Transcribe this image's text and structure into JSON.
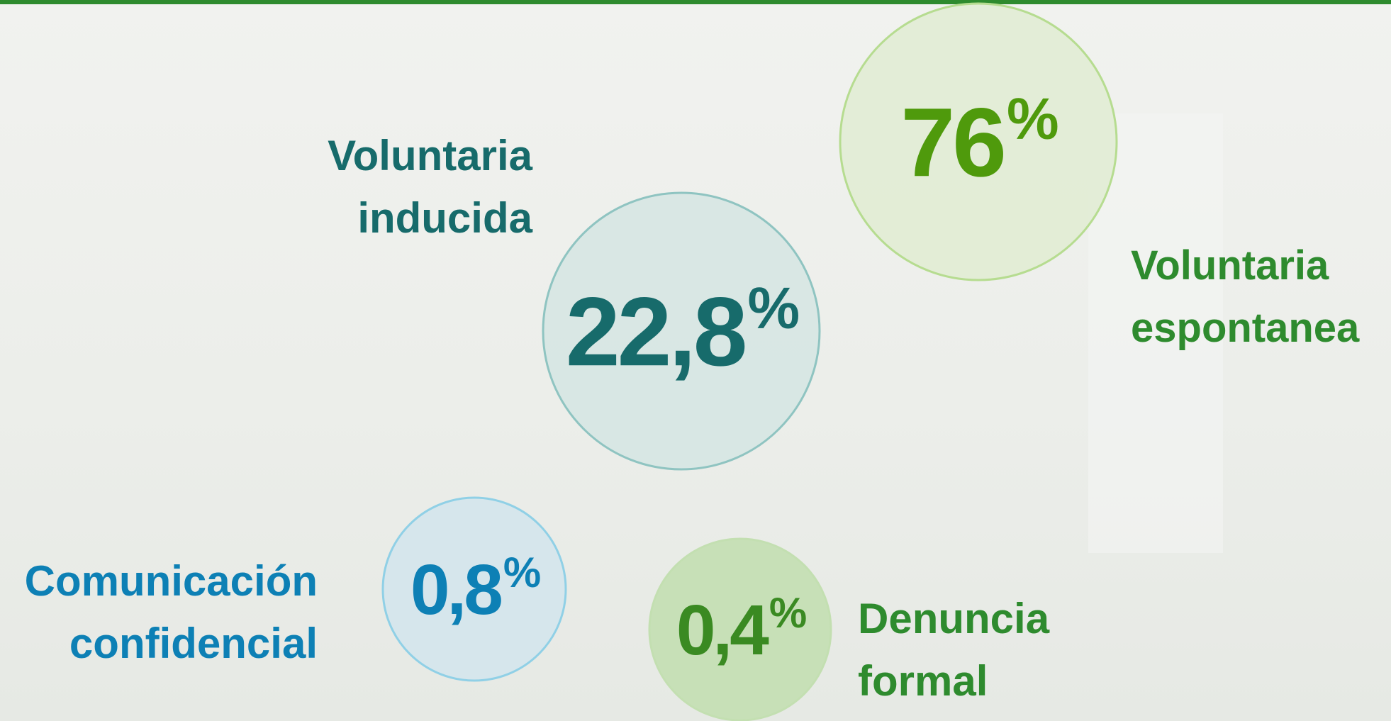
{
  "items": [
    {
      "value": "76",
      "unit": "%",
      "label": [
        "Voluntaria",
        "espontanea"
      ]
    },
    {
      "value": "22,8",
      "unit": "%",
      "label": [
        "Voluntaria",
        "inducida"
      ]
    },
    {
      "value": "0,8",
      "unit": "%",
      "label": [
        "Comunicación",
        "confidencial"
      ]
    },
    {
      "value": "0,4",
      "unit": "%",
      "label": [
        "Denuncia",
        "formal"
      ]
    }
  ]
}
